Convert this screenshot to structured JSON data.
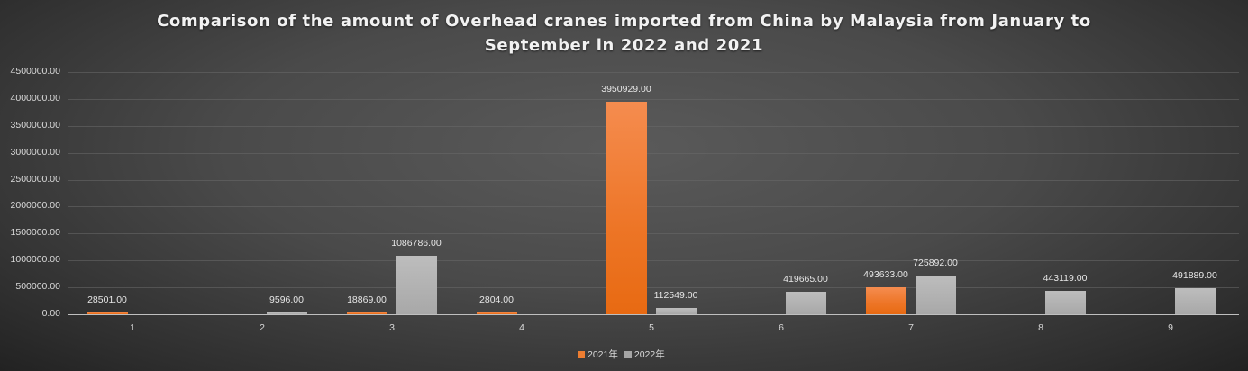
{
  "chart_data": {
    "type": "bar",
    "title": "Comparison of the amount of Overhead cranes imported from China by Malaysia from January to September in 2022 and 2021",
    "title_lines": [
      "Comparison of the amount of Overhead cranes imported from China by Malaysia from January to",
      "September in 2022 and 2021"
    ],
    "xlabel": "",
    "ylabel": "",
    "categories": [
      "1",
      "2",
      "3",
      "4",
      "5",
      "6",
      "7",
      "8",
      "9"
    ],
    "series": [
      {
        "name": "2021年",
        "color": "#ed7d31",
        "values": [
          28501.0,
          null,
          18869.0,
          2804.0,
          3950929.0,
          null,
          493633.0,
          null,
          null
        ],
        "labels": [
          "28501.00",
          "",
          "18869.00",
          "2804.00",
          "3950929.00",
          "",
          "493633.00",
          "",
          ""
        ]
      },
      {
        "name": "2022年",
        "color": "#a5a5a5",
        "values": [
          null,
          9596.0,
          1086786.0,
          null,
          112549.0,
          419665.0,
          725892.0,
          443119.0,
          491889.0
        ],
        "labels": [
          "",
          "9596.00",
          "1086786.00",
          "",
          "112549.00",
          "419665.00",
          "725892.00",
          "443119.00",
          "491889.00"
        ]
      }
    ],
    "ylim": [
      0,
      4500000
    ],
    "yticks": [
      "0.00",
      "500000.00",
      "1000000.00",
      "1500000.00",
      "2000000.00",
      "2500000.00",
      "3000000.00",
      "3500000.00",
      "4000000.00",
      "4500000.00"
    ],
    "grid": true,
    "legend_position": "bottom"
  }
}
